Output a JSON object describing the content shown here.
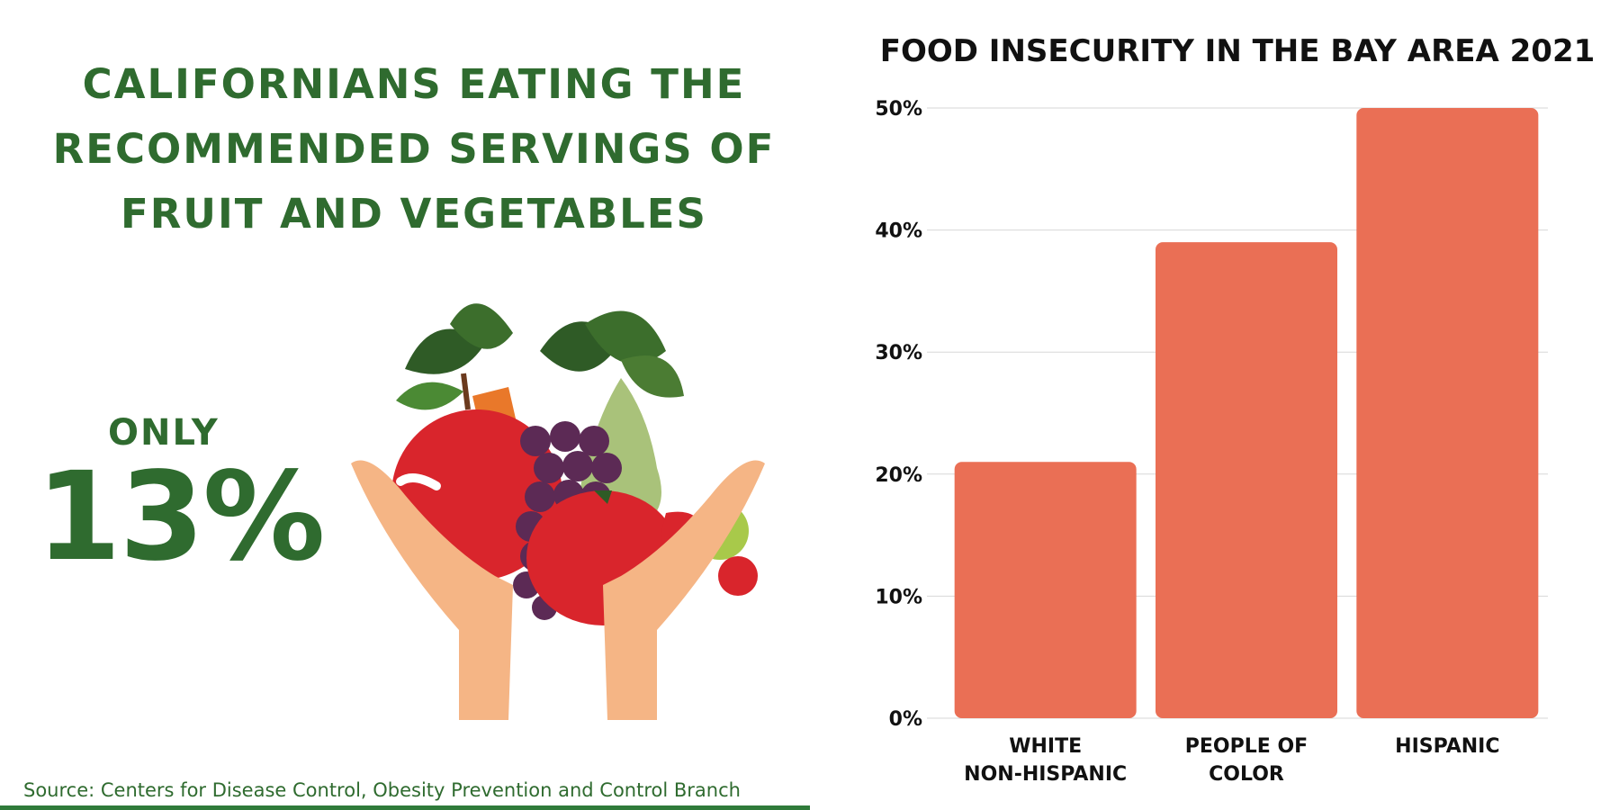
{
  "left_panel": {
    "title_lines": [
      "CALIFORNIANS EATING THE",
      "RECOMMENDED SERVINGS OF",
      "FRUIT AND VEGETABLES"
    ],
    "only_label": "ONLY",
    "stat": "13%",
    "illustration_icon": "hands-holding-fruit-and-vegetables-icon",
    "source": "Source: Centers for Disease Control, Obesity Prevention and Control Branch"
  },
  "colors": {
    "title_green": "#2f6b2f",
    "bar_color": "#ea6f55",
    "grid_color": "#d7d7d7"
  },
  "chart_data": {
    "type": "bar",
    "title": "FOOD INSECURITY IN THE BAY AREA 2021",
    "categories": [
      [
        "WHITE",
        "NON-HISPANIC"
      ],
      [
        "PEOPLE OF",
        "COLOR"
      ],
      [
        "HISPANIC"
      ]
    ],
    "values": [
      21,
      39,
      50
    ],
    "y_ticks": [
      "0%",
      "10%",
      "20%",
      "30%",
      "40%",
      "50%"
    ],
    "ylim": [
      0,
      50
    ],
    "grid": true,
    "xlabel": "",
    "ylabel": ""
  }
}
